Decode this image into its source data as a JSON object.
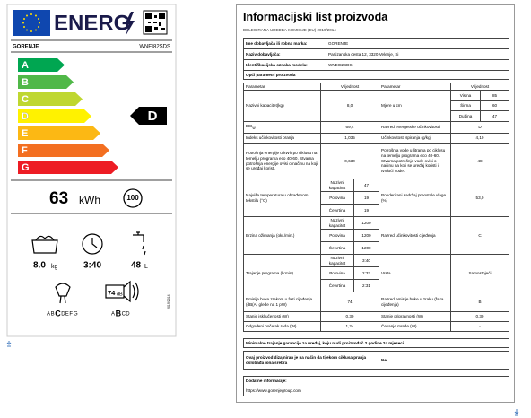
{
  "label": {
    "title": "ENERG",
    "brand": "GORENJE",
    "model": "WNEI82SDS",
    "classes": [
      "A",
      "B",
      "C",
      "D",
      "E",
      "F",
      "G"
    ],
    "rating": "D",
    "energy": "63",
    "energy_unit": "kWh",
    "cycles": "100",
    "capacity": "8.0",
    "capacity_unit": "kg",
    "duration": "3:40",
    "water": "48",
    "water_unit": "L",
    "spin_classes": [
      "A",
      "B",
      "C",
      "D",
      "E",
      "F",
      "G"
    ],
    "noise": "74",
    "noise_unit": "dB",
    "noise_classes": [
      "A",
      "B",
      "C",
      "D"
    ],
    "regulation": "2019/2014"
  },
  "sheet": {
    "title": "Informacijski list proizvoda",
    "regulation": "DELEGIRANA UREDBA KOMISIJE (EU) 2019/2014",
    "supplier": [
      {
        "label": "Ime dobavljača ili robna marka:",
        "value": "GORENJE"
      },
      {
        "label": "Naziv dobavljača:",
        "value": "Partizanska cesta 12, 3320 Velenje, Si"
      },
      {
        "label": "Identifikacijska oznaka modela:",
        "value": "WNEI82SDS"
      }
    ],
    "section": "Opći parametri proizvoda",
    "header": [
      "Parametar",
      "Vrijednost",
      "Parametar",
      "Vrijednost"
    ],
    "rows": [
      {
        "param": "Nazivni kapacitet(kg)",
        "value": "8,0",
        "param2": "Mjere u cm",
        "sub2": [
          {
            "label": "Visina",
            "value": "85"
          },
          {
            "label": "Širina",
            "value": "60"
          },
          {
            "label": "Dubina",
            "value": "47"
          }
        ]
      },
      {
        "param": "EEI",
        "param_sub": "W",
        "value": "69,4",
        "param2": "Razred energetske učinkovitosti",
        "value2": "D"
      },
      {
        "param": "Indeks učinkovitosti pranja",
        "value": "1,035",
        "param2": "Učinkovitost ispiranja (g/kg)",
        "value2": "4,10"
      },
      {
        "param": "Potrošnja energije u kWh po ciklusu na temelju programa eco 40-60. Stvarna potrošnja energije ovisi o načinu na koji se uređaj koristi.",
        "value": "0,630",
        "param2": "Potrošnja vode u litrama po ciklusu na temelju programa eco 40-60. Stvarna potrošnja vode ovisi o načinu na koji se uređaj koristi i tvrdoći vode.",
        "value2": "48"
      },
      {
        "param": "Najviša temperatura u obrađenom tekstilu (°C)",
        "sub": [
          {
            "label": "Nazivni kapacitet",
            "value": "47"
          },
          {
            "label": "Polovina",
            "value": "19"
          },
          {
            "label": "Četvrtina",
            "value": "19"
          }
        ],
        "param2": "Ponderirani sadržaj preostale vlage (%)",
        "value2": "53,0"
      },
      {
        "param": "Brzina ožimanja (okr./min.)",
        "sub": [
          {
            "label": "Nazivni kapacitet",
            "value": "1200"
          },
          {
            "label": "Polovina",
            "value": "1200"
          },
          {
            "label": "Četvrtina",
            "value": "1200"
          }
        ],
        "param2": "Razred učinkovitosti cijeđenja",
        "value2": "C"
      },
      {
        "param": "Trajanje programa (h:min)",
        "sub": [
          {
            "label": "Nazivni kapacitet",
            "value": "3:40"
          },
          {
            "label": "Polovina",
            "value": "2:33"
          },
          {
            "label": "Četvrtina",
            "value": "2:31"
          }
        ],
        "param2": "Vrsta",
        "value2": "Samostojeći"
      },
      {
        "param": "Emisija buke zrakom u fazi cijeđenja (dB(A) glede na 1 pW)",
        "value": "74",
        "param2": "Razred emisije buke u zraku (faza cijeđenja)",
        "value2": "B"
      },
      {
        "param": "Stanje isključenosti (W)",
        "value": "0,30",
        "param2": "Stanje pripravnosti (W)",
        "value2": "0,30"
      },
      {
        "param": "Odgođeni početak rada (W)",
        "value": "1,24",
        "param2": "Čekanje mreže (W)",
        "value2": "-"
      }
    ],
    "warranty": "Minimalno trajanje garancije za uređaj, koju nudi proizvođač 2 godine 24 mjeseci",
    "silver": {
      "text": "Ovaj proizvod dizajniran je na način da tijekom ciklusa pranja oslobađa iona srebra",
      "value": "Ne"
    },
    "additional": {
      "label": "Dodatne informacije:",
      "url": "https://www.gorenjegroup.com"
    }
  }
}
